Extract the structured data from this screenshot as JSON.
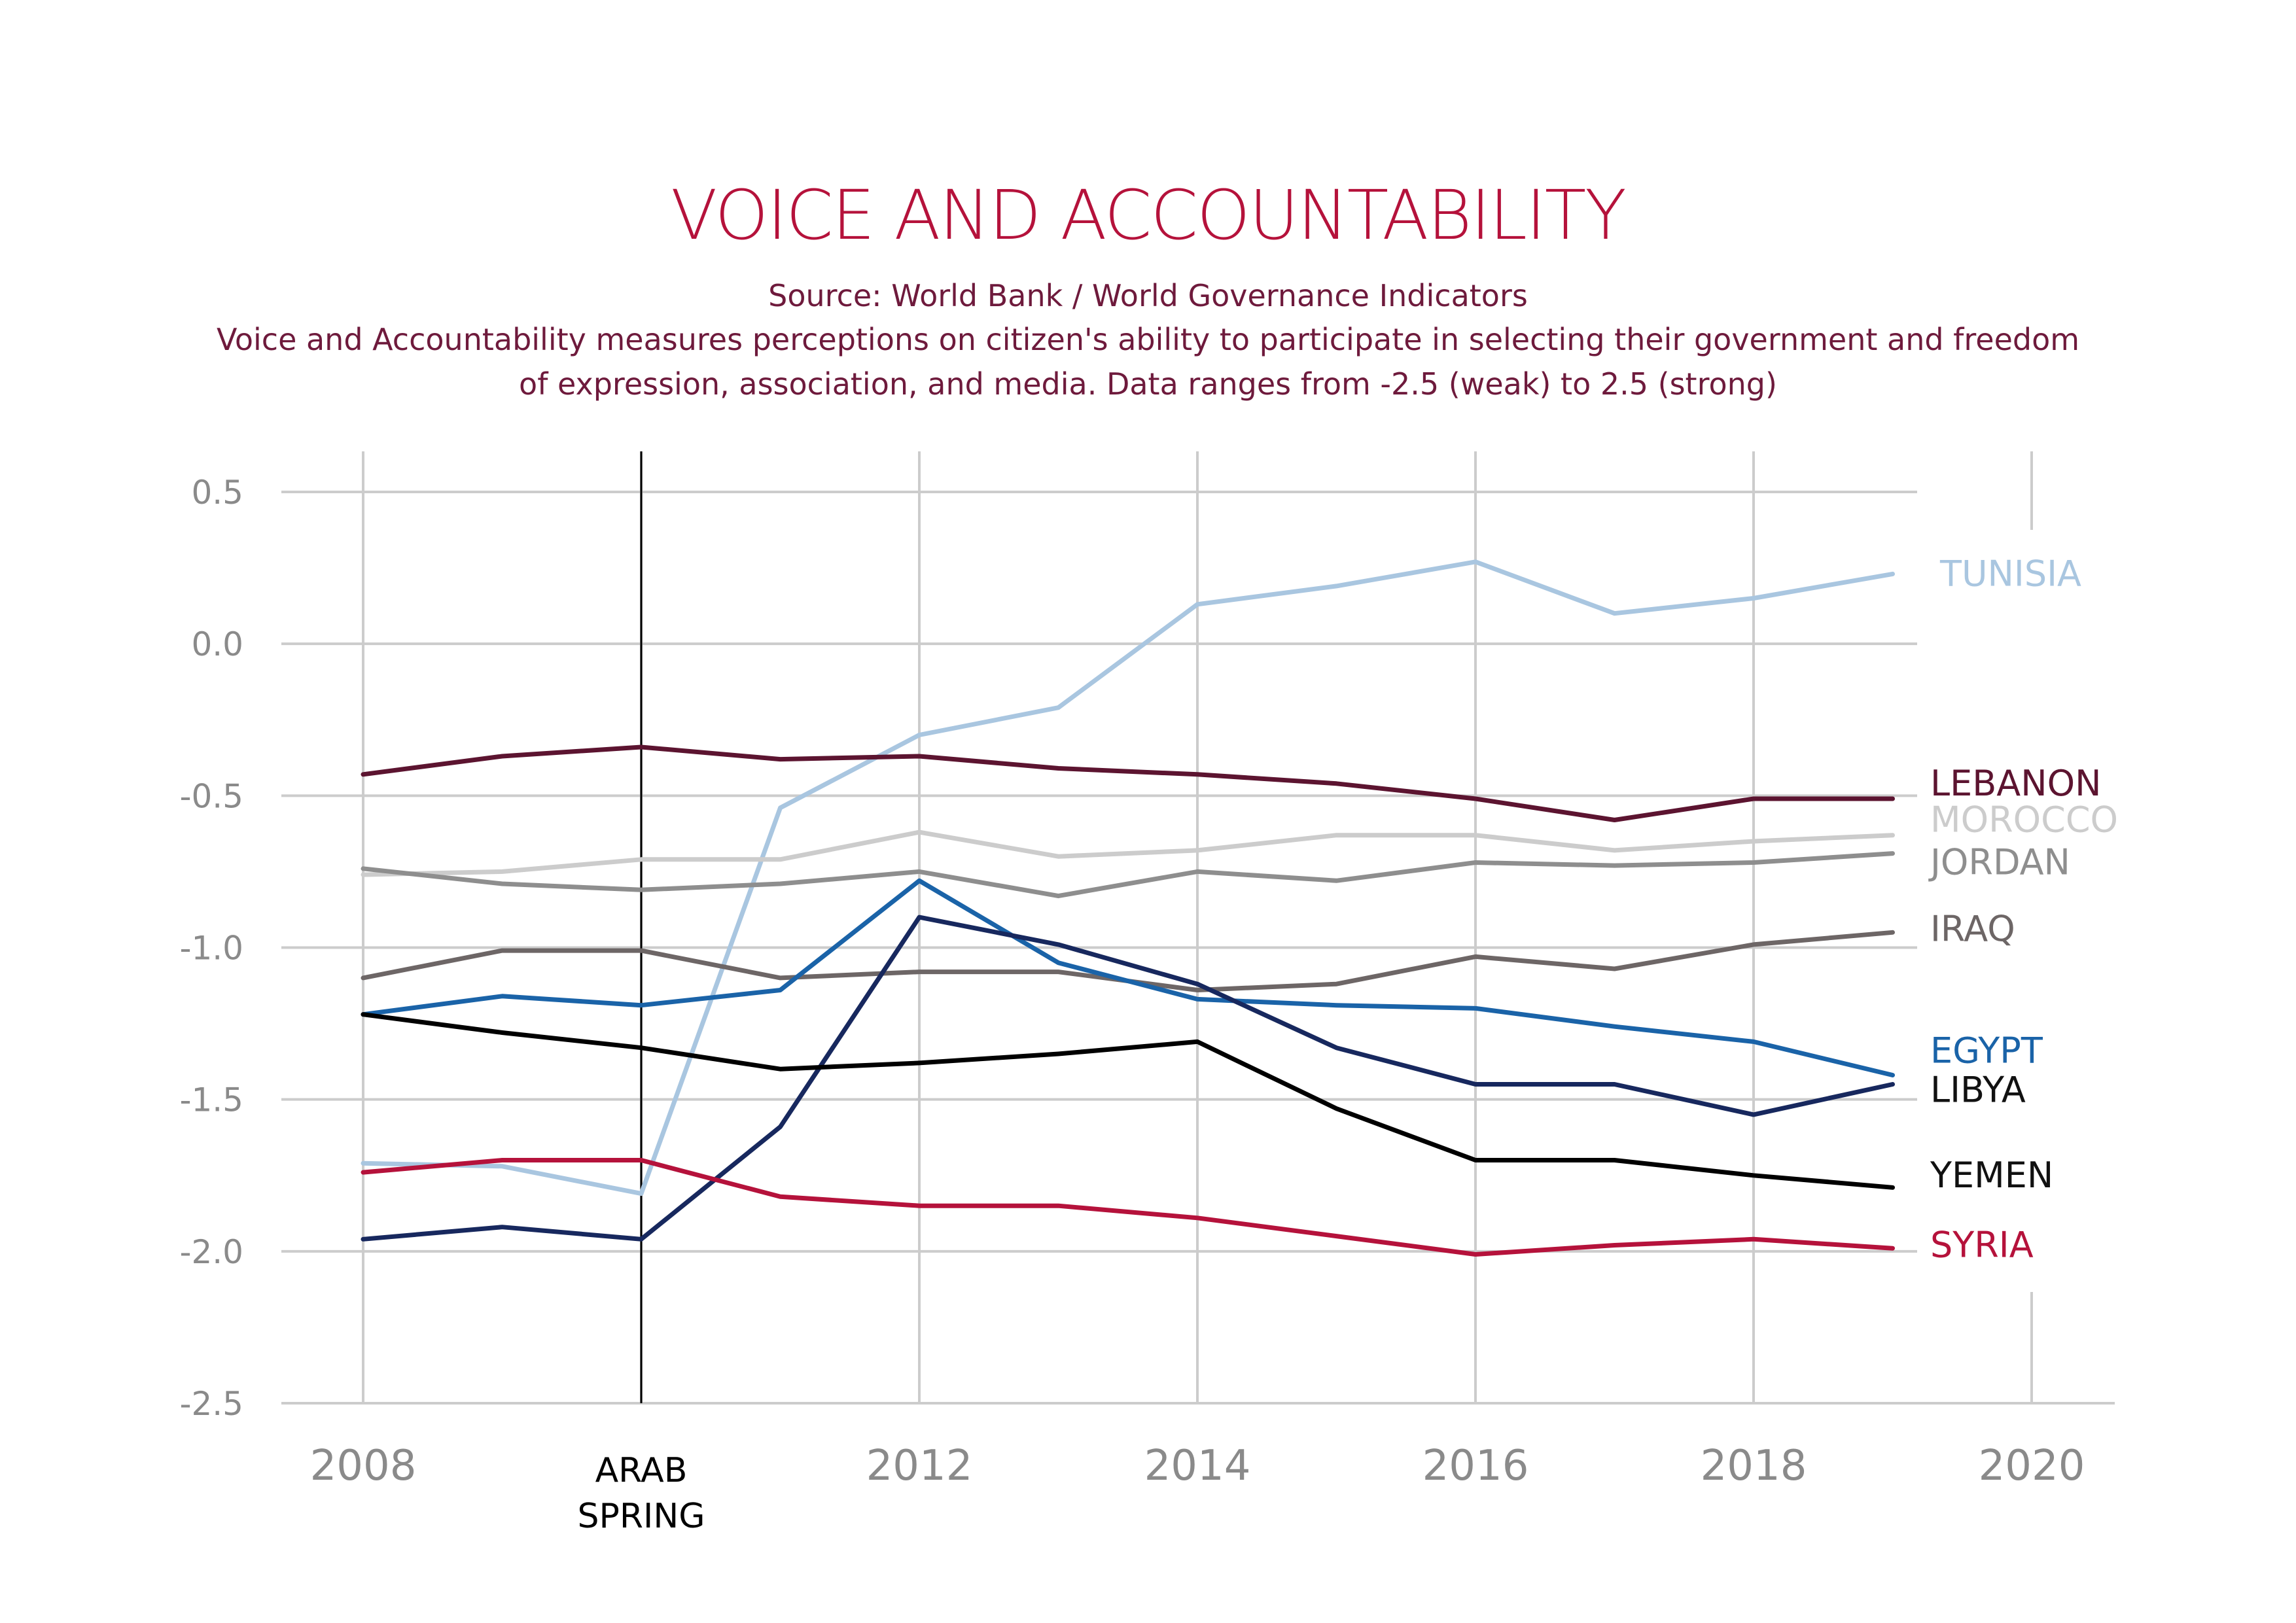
{
  "title": "VOICE AND ACCOUNTABILITY",
  "source": "Source: World Bank / World Governance Indicators",
  "description_line1": "Voice and Accountability measures perceptions on citizen's ability to participate in selecting their government and freedom",
  "description_line2": "of expression, association, and media. Data ranges from -2.5 (weak) to 2.5 (strong)",
  "chart_data": {
    "type": "line",
    "x": [
      2008,
      2009,
      2010,
      2011,
      2012,
      2013,
      2014,
      2015,
      2016,
      2017,
      2018,
      2019
    ],
    "xlim": [
      2008,
      2020
    ],
    "ylim": [
      -2.5,
      0.5
    ],
    "grid": true,
    "x_ticks": [
      "2008",
      "2012",
      "2014",
      "2016",
      "2018",
      "2020"
    ],
    "y_ticks": [
      "0.5",
      "0.0",
      "-0.5",
      "-1.0",
      "-1.5",
      "-2.0",
      "-2.5"
    ],
    "annotation": {
      "x": 2010,
      "label_line1": "ARAB",
      "label_line2": "SPRING",
      "color": "#000000"
    },
    "legend_position": "right-end-labels",
    "series": [
      {
        "name": "TUNISIA",
        "color": "#a9c6e0",
        "values": [
          -1.71,
          -1.72,
          -1.81,
          -0.54,
          -0.3,
          -0.21,
          0.13,
          0.19,
          0.27,
          0.1,
          0.15,
          0.23
        ]
      },
      {
        "name": "LEBANON",
        "color": "#5c1430",
        "values": [
          -0.43,
          -0.37,
          -0.34,
          -0.38,
          -0.37,
          -0.41,
          -0.43,
          -0.46,
          -0.51,
          -0.58,
          -0.51,
          -0.51
        ]
      },
      {
        "name": "MOROCCO",
        "color": "#cccccc",
        "values": [
          -0.76,
          -0.75,
          -0.71,
          -0.71,
          -0.62,
          -0.7,
          -0.68,
          -0.63,
          -0.63,
          -0.68,
          -0.65,
          -0.63
        ]
      },
      {
        "name": "JORDAN",
        "color": "#8e8e8e",
        "values": [
          -0.74,
          -0.79,
          -0.81,
          -0.79,
          -0.75,
          -0.83,
          -0.75,
          -0.78,
          -0.72,
          -0.73,
          -0.72,
          -0.69
        ]
      },
      {
        "name": "IRAQ",
        "color": "#6d6666",
        "values": [
          -1.1,
          -1.01,
          -1.01,
          -1.1,
          -1.08,
          -1.08,
          -1.14,
          -1.12,
          -1.03,
          -1.07,
          -0.99,
          -0.95
        ]
      },
      {
        "name": "EGYPT",
        "color": "#1a63a8",
        "values": [
          -1.22,
          -1.16,
          -1.19,
          -1.14,
          -0.78,
          -1.05,
          -1.17,
          -1.19,
          -1.2,
          -1.26,
          -1.31,
          -1.42
        ]
      },
      {
        "name": "LIBYA",
        "color": "#17285e",
        "values": [
          -1.96,
          -1.92,
          -1.96,
          -1.59,
          -0.9,
          -0.99,
          -1.12,
          -1.33,
          -1.45,
          -1.45,
          -1.55,
          -1.45
        ]
      },
      {
        "name": "YEMEN",
        "color": "#000000",
        "values": [
          -1.22,
          -1.28,
          -1.33,
          -1.4,
          -1.38,
          -1.35,
          -1.31,
          -1.53,
          -1.7,
          -1.7,
          -1.75,
          -1.79
        ]
      },
      {
        "name": "SYRIA",
        "color": "#b5123b",
        "values": [
          -1.74,
          -1.7,
          -1.7,
          -1.82,
          -1.85,
          -1.85,
          -1.89,
          -1.95,
          -2.01,
          -1.98,
          -1.96,
          -1.99
        ]
      }
    ]
  },
  "label_offsets_note": ""
}
